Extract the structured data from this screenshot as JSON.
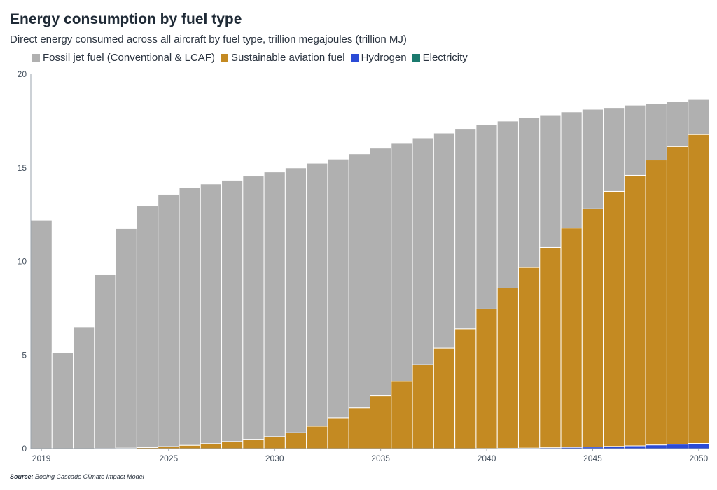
{
  "chart_data": {
    "type": "bar",
    "stacked": true,
    "title": "Energy consumption by fuel type",
    "subtitle": "Direct energy consumed across all aircraft by fuel type, trillion megajoules (trillion MJ)",
    "ylim": [
      0,
      20
    ],
    "yticks": [
      0,
      5,
      10,
      15,
      20
    ],
    "xticks": [
      2019,
      2025,
      2030,
      2035,
      2040,
      2045,
      2050
    ],
    "legend_position": "top-left",
    "grid": false,
    "x": [
      2019,
      2020,
      2021,
      2022,
      2023,
      2024,
      2025,
      2026,
      2027,
      2028,
      2029,
      2030,
      2031,
      2032,
      2033,
      2034,
      2035,
      2036,
      2037,
      2038,
      2039,
      2040,
      2041,
      2042,
      2043,
      2044,
      2045,
      2046,
      2047,
      2048,
      2049,
      2050
    ],
    "series": [
      {
        "name": "Electricity",
        "color": "#1b7a6e",
        "values": [
          0,
          0,
          0,
          0,
          0,
          0,
          0,
          0,
          0,
          0,
          0,
          0,
          0,
          0,
          0,
          0,
          0,
          0,
          0,
          0,
          0,
          0,
          0,
          0,
          0,
          0,
          0,
          0,
          0,
          0,
          0,
          0
        ]
      },
      {
        "name": "Hydrogen",
        "color": "#2b4bd6",
        "values": [
          0,
          0,
          0,
          0,
          0,
          0,
          0,
          0,
          0,
          0,
          0,
          0,
          0,
          0,
          0,
          0,
          0,
          0,
          0,
          0,
          0,
          0.01,
          0.02,
          0.03,
          0.05,
          0.07,
          0.09,
          0.12,
          0.15,
          0.2,
          0.24,
          0.28
        ]
      },
      {
        "name": "Sustainable aviation fuel",
        "color": "#c48a22",
        "values": [
          0,
          0,
          0,
          0.01,
          0.03,
          0.06,
          0.11,
          0.18,
          0.27,
          0.38,
          0.5,
          0.64,
          0.85,
          1.2,
          1.65,
          2.18,
          2.82,
          3.6,
          4.48,
          5.38,
          6.4,
          7.45,
          8.56,
          9.65,
          10.7,
          11.72,
          12.72,
          13.62,
          14.45,
          15.22,
          15.9,
          16.5
        ]
      },
      {
        "name": "Fossil jet fuel (Conventional & LCAF)",
        "color": "#b0b0b0",
        "values": [
          12.22,
          5.12,
          6.51,
          9.28,
          11.73,
          12.93,
          13.48,
          13.75,
          13.87,
          13.96,
          14.06,
          14.14,
          14.15,
          14.05,
          13.82,
          13.57,
          13.23,
          12.74,
          12.12,
          11.48,
          10.7,
          9.84,
          8.92,
          8.02,
          7.08,
          6.2,
          5.32,
          4.48,
          3.75,
          3.0,
          2.42,
          1.87
        ]
      }
    ],
    "legend_order": [
      "Fossil jet fuel (Conventional & LCAF)",
      "Sustainable aviation fuel",
      "Hydrogen",
      "Electricity"
    ]
  },
  "source": {
    "label": "Source:",
    "text": "Boeing Cascade Climate Impact Model"
  }
}
